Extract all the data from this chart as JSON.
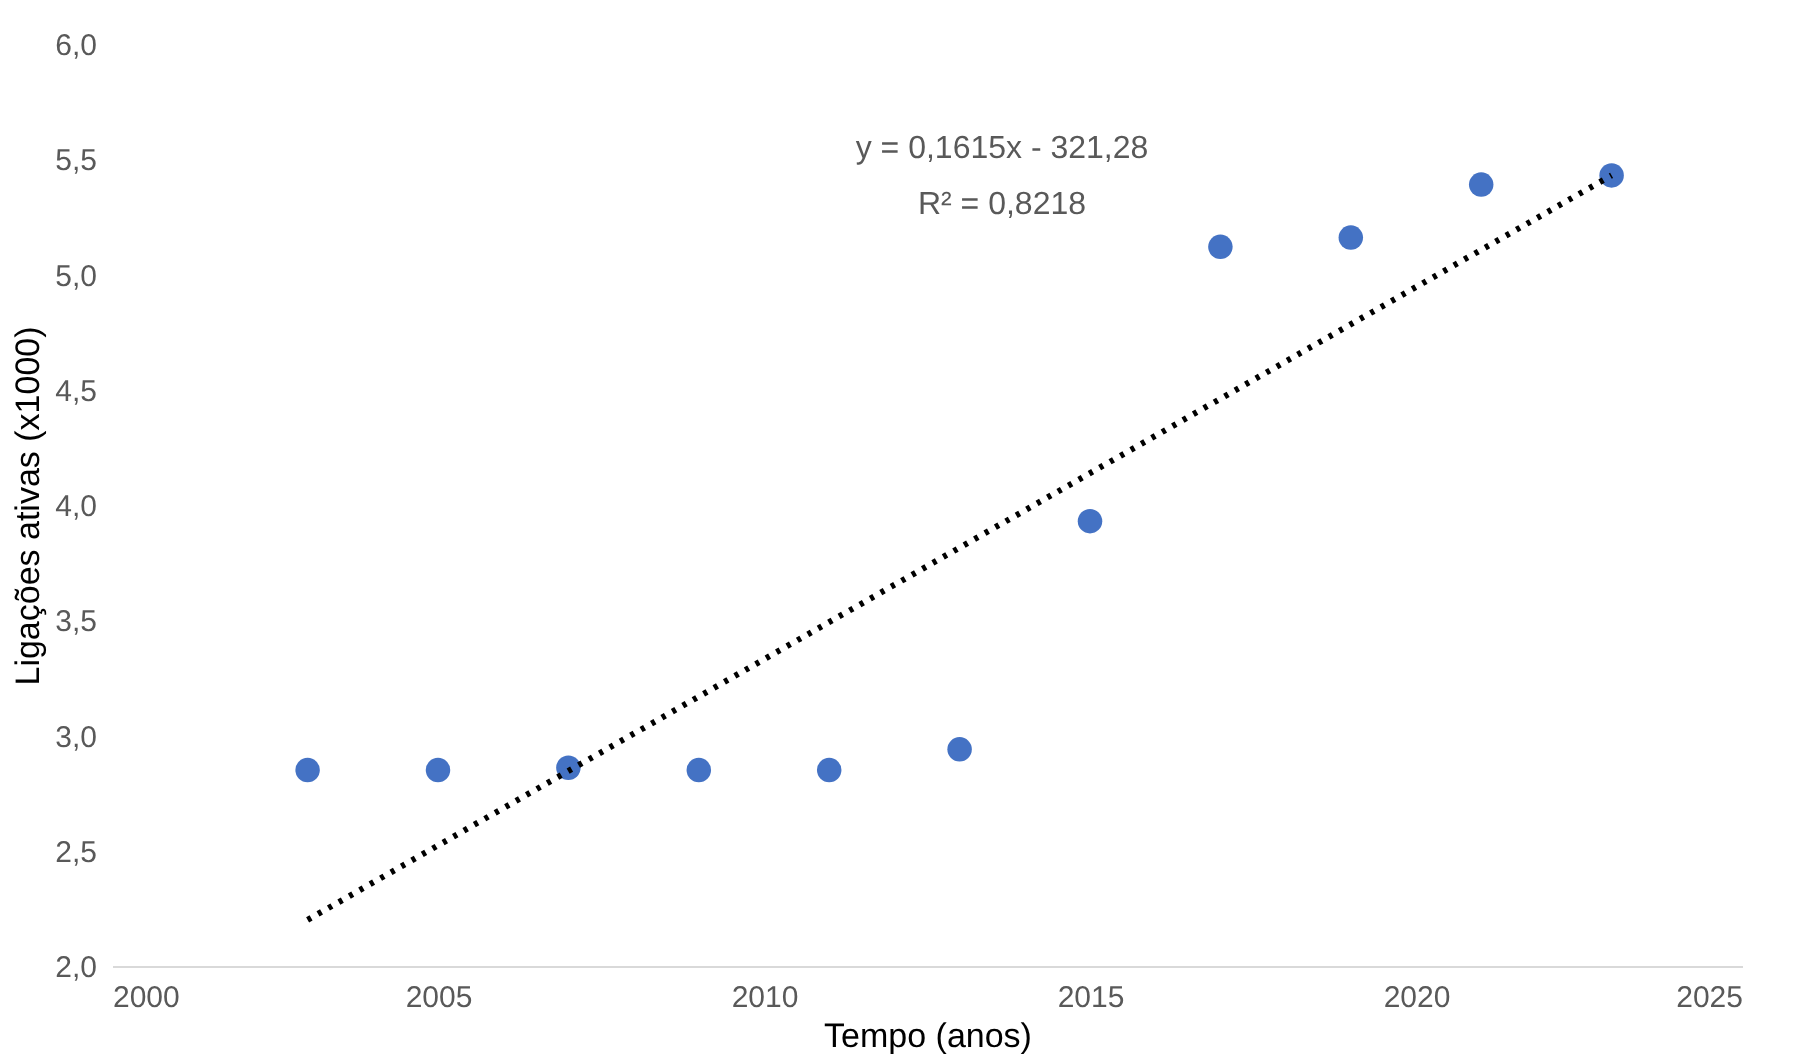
{
  "chart_data": {
    "type": "scatter",
    "xlabel": "Tempo (anos)",
    "ylabel": "Ligações ativas (x1000)",
    "xlim": [
      2000,
      2025
    ],
    "xticks": [
      2000,
      2005,
      2010,
      2015,
      2020,
      2025
    ],
    "ylim": [
      2.0,
      6.0
    ],
    "yticks": [
      {
        "value": 2.0,
        "label": "2,0"
      },
      {
        "value": 2.5,
        "label": "2,5"
      },
      {
        "value": 3.0,
        "label": "3,0"
      },
      {
        "value": 3.5,
        "label": "3,5"
      },
      {
        "value": 4.0,
        "label": "4,0"
      },
      {
        "value": 4.5,
        "label": "4,5"
      },
      {
        "value": 5.0,
        "label": "5,0"
      },
      {
        "value": 5.5,
        "label": "5,5"
      },
      {
        "value": 6.0,
        "label": "6,0"
      }
    ],
    "grid": false,
    "annotations": [
      "y = 0,1615x - 321,28",
      "R² = 0,8218"
    ],
    "series": [
      {
        "color": "#4472c4",
        "marker": "circle",
        "x": [
          2003,
          2005,
          2007,
          2009,
          2011,
          2013,
          2015,
          2017,
          2019,
          2021,
          2023
        ],
        "values": [
          2.85,
          2.85,
          2.86,
          2.85,
          2.85,
          2.94,
          3.93,
          5.12,
          5.16,
          5.39,
          5.43
        ]
      },
      {
        "type": "line",
        "color": "#000000",
        "line_style": "dotted",
        "marker": "none",
        "x": [
          2003,
          2023
        ],
        "values": [
          2.2,
          5.43
        ]
      }
    ]
  }
}
